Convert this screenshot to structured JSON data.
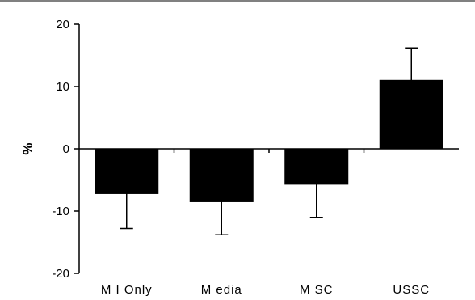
{
  "chart_data": {
    "type": "bar",
    "title": "",
    "xlabel": "",
    "ylabel": "%",
    "categories": [
      "M I Only",
      "M edia",
      "M SC",
      "USSC"
    ],
    "series": [
      {
        "values": [
          -7.2,
          -8.5,
          -5.7,
          11.0
        ],
        "error": [
          5.6,
          5.3,
          5.3,
          5.2
        ]
      }
    ],
    "ylim": [
      -20,
      20
    ],
    "yticks": [
      -20,
      -10,
      0,
      10,
      20
    ],
    "ytick_labels": [
      "-20",
      "-10",
      "0",
      "10",
      "20"
    ],
    "grid": false,
    "legend": "none",
    "bar_color": "#000000",
    "error_bar_direction": "outward"
  }
}
